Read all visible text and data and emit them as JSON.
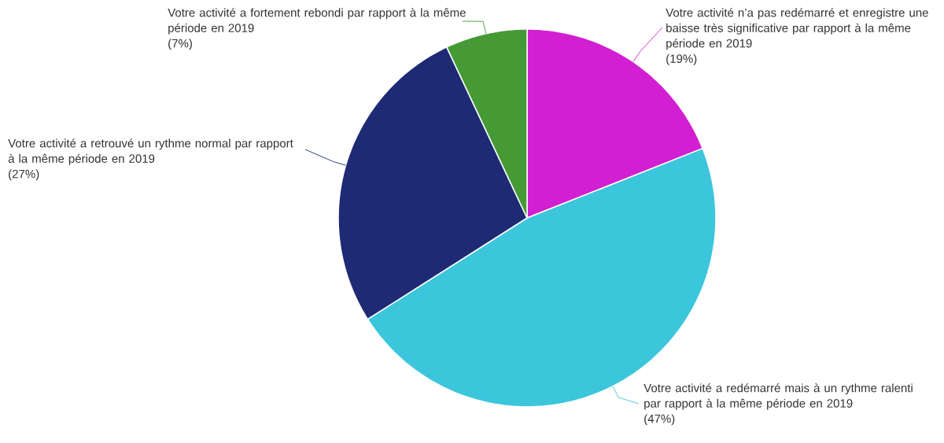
{
  "chart_data": {
    "type": "pie",
    "categories": [
      "Votre activité n’a pas redémarré et enregistre une baisse très significative par rapport à la même période en 2019",
      "Votre activité a redémarré mais à un rythme ralenti par rapport à la même période en 2019",
      "Votre activité a retrouvé un rythme normal par rapport à la même période en 2019",
      "Votre activité a fortement rebondi par rapport à la même période en 2019"
    ],
    "values": [
      19,
      47,
      27,
      7
    ],
    "colors": [
      "#d21fd2",
      "#3cc6dc",
      "#1e2a74",
      "#459a35"
    ],
    "value_labels": [
      "(19%)",
      "(47%)",
      "(27%)",
      "(7%)"
    ]
  }
}
